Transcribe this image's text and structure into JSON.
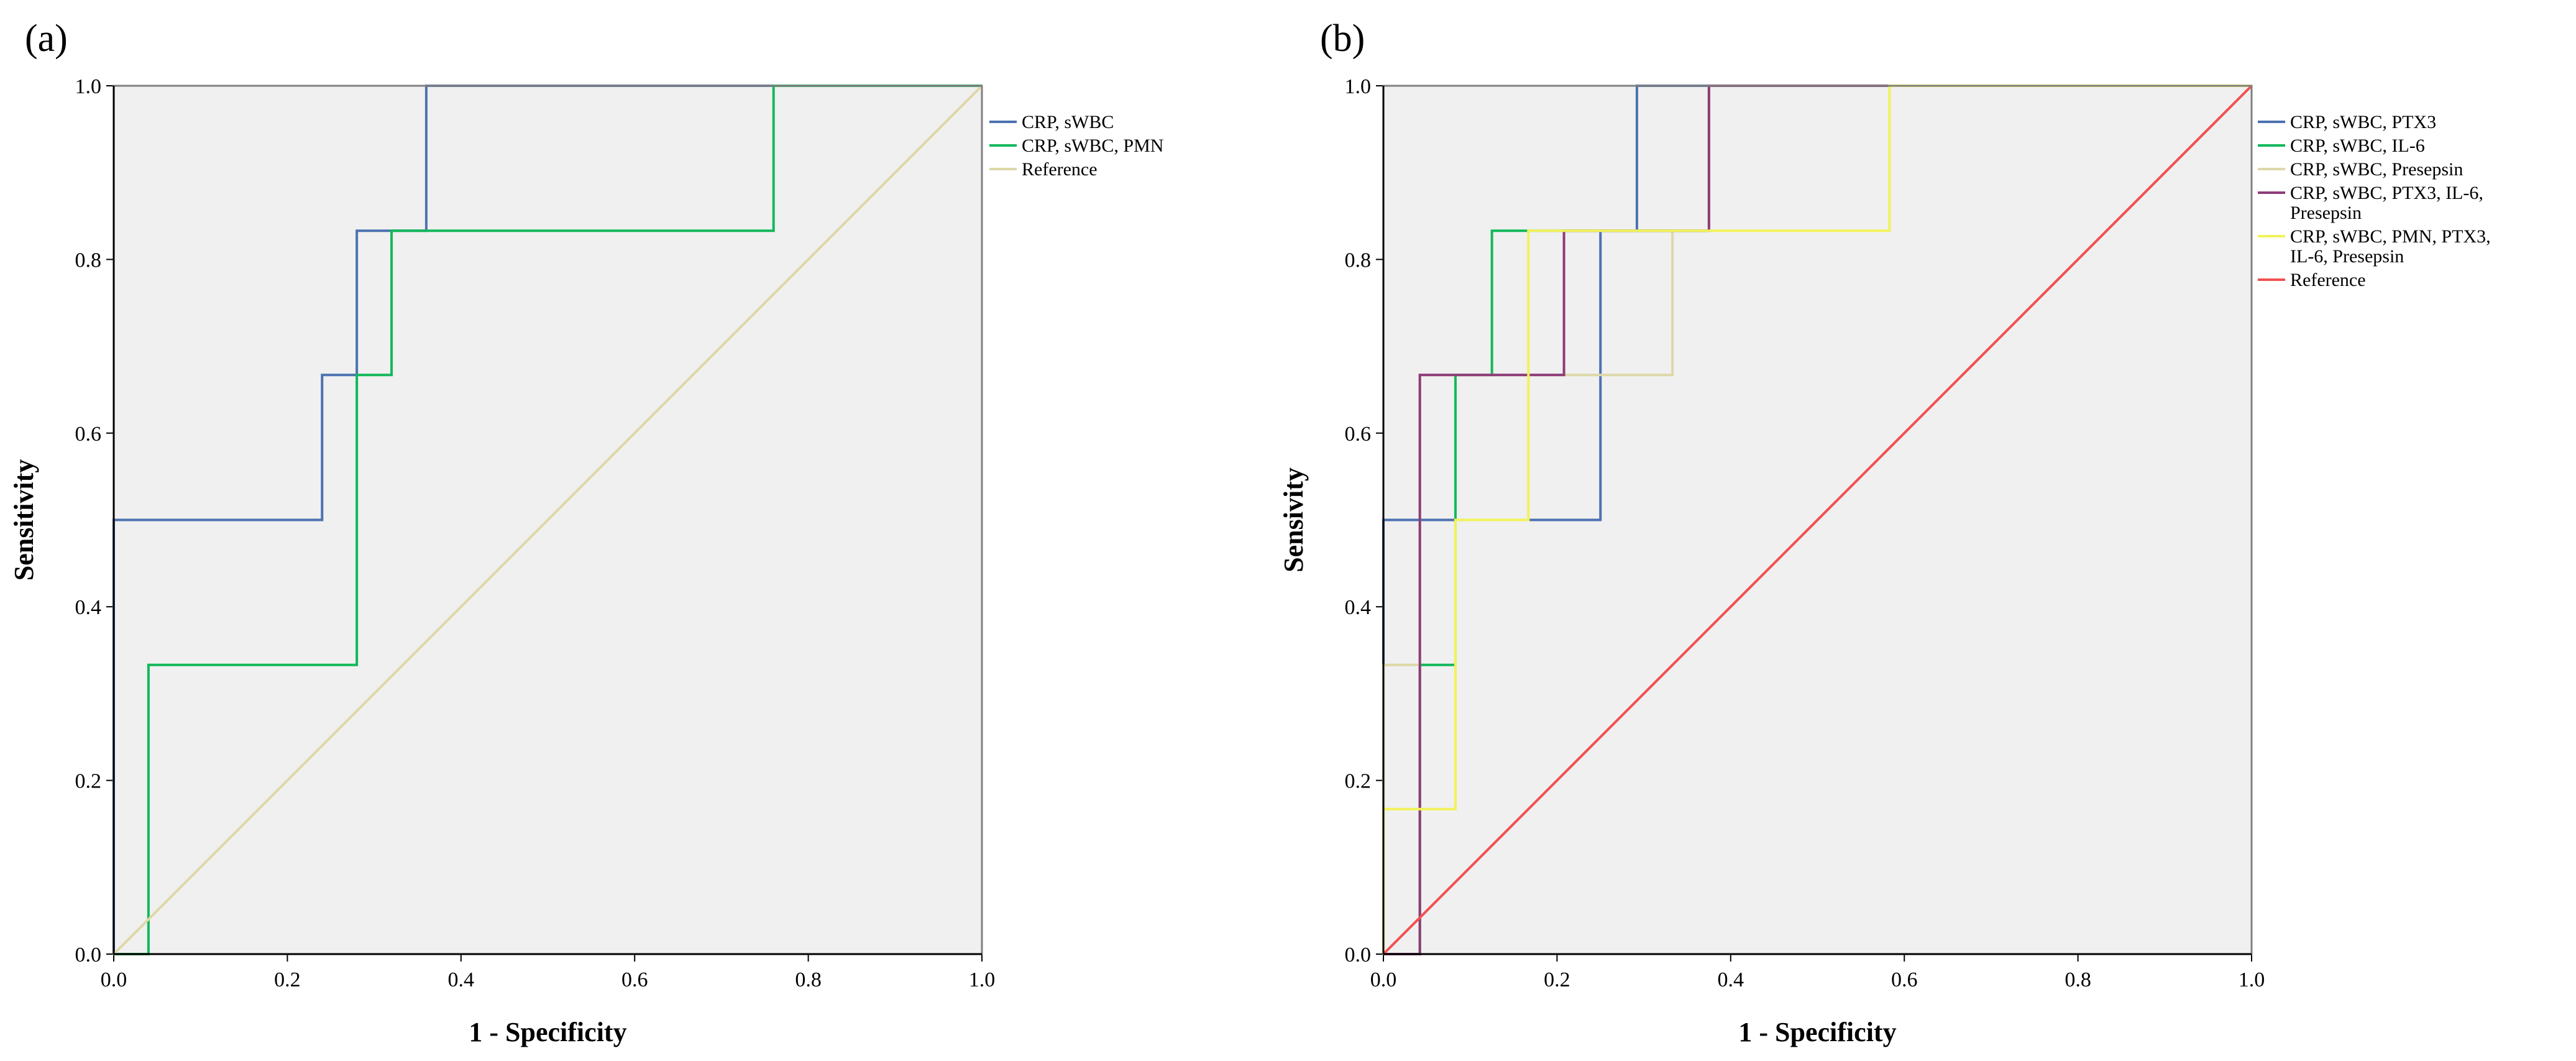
{
  "chart_data": [
    {
      "type": "line",
      "panel_label": "(a)",
      "xlabel": "1 - Specificity",
      "ylabel": "Sensitivity",
      "xlim": [
        0,
        1
      ],
      "ylim": [
        0,
        1
      ],
      "xticks": [
        "0.0",
        "0.2",
        "0.4",
        "0.6",
        "0.8",
        "1.0"
      ],
      "yticks": [
        "0.0",
        "0.2",
        "0.4",
        "0.6",
        "0.8",
        "1.0"
      ],
      "grid": false,
      "legend_position": "right",
      "series": [
        {
          "name": "CRP, sWBC",
          "legend_lines": [
            "CRP, sWBC"
          ],
          "color": "#4C72B0",
          "x": [
            0,
            0,
            0.24,
            0.24,
            0.28,
            0.28,
            0.36,
            0.36,
            1
          ],
          "y": [
            0,
            0.5,
            0.5,
            0.667,
            0.667,
            0.833,
            0.833,
            1,
            1
          ]
        },
        {
          "name": "CRP, sWBC, PMN",
          "legend_lines": [
            "CRP, sWBC, PMN"
          ],
          "color": "#12B85A",
          "x": [
            0,
            0.04,
            0.04,
            0.28,
            0.28,
            0.32,
            0.32,
            0.76,
            0.76,
            1
          ],
          "y": [
            0,
            0,
            0.333,
            0.333,
            0.667,
            0.667,
            0.833,
            0.833,
            1,
            1
          ]
        },
        {
          "name": "Reference",
          "legend_lines": [
            "Reference"
          ],
          "color": "#DDD8A8",
          "x": [
            0,
            1
          ],
          "y": [
            0,
            1
          ]
        }
      ]
    },
    {
      "type": "line",
      "panel_label": "(b)",
      "xlabel": "1 - Specificity",
      "ylabel": "Sensivity",
      "xlim": [
        0,
        1
      ],
      "ylim": [
        0,
        1
      ],
      "xticks": [
        "0.0",
        "0.2",
        "0.4",
        "0.6",
        "0.8",
        "1.0"
      ],
      "yticks": [
        "0.0",
        "0.2",
        "0.4",
        "0.6",
        "0.8",
        "1.0"
      ],
      "grid": false,
      "legend_position": "right",
      "series": [
        {
          "name": "CRP, sWBC, PTX3",
          "legend_lines": [
            "CRP, sWBC, PTX3"
          ],
          "color": "#4C72B0",
          "x": [
            0,
            0,
            0.25,
            0.25,
            0.292,
            0.292,
            1
          ],
          "y": [
            0,
            0.5,
            0.5,
            0.833,
            0.833,
            1,
            1
          ]
        },
        {
          "name": "CRP, sWBC, IL-6",
          "legend_lines": [
            "CRP, sWBC, IL-6"
          ],
          "color": "#12B85A",
          "x": [
            0,
            0.042,
            0.042,
            0.083,
            0.083,
            0.125,
            0.125,
            0.375,
            0.375,
            1
          ],
          "y": [
            0,
            0,
            0.333,
            0.333,
            0.667,
            0.667,
            0.833,
            0.833,
            1,
            1
          ]
        },
        {
          "name": "CRP, sWBC, Presepsin",
          "legend_lines": [
            "CRP, sWBC, Presepsin"
          ],
          "color": "#DDD8A8",
          "x": [
            0,
            0,
            0.042,
            0.042,
            0.333,
            0.333,
            0.375,
            0.375,
            1
          ],
          "y": [
            0,
            0.333,
            0.333,
            0.667,
            0.667,
            0.833,
            0.833,
            1,
            1
          ]
        },
        {
          "name": "CRP, sWBC, PTX3, IL-6, Presepsin",
          "legend_lines": [
            "CRP, sWBC, PTX3, IL-6,",
            "Presepsin"
          ],
          "color": "#8E3B78",
          "x": [
            0,
            0.042,
            0.042,
            0.208,
            0.208,
            0.375,
            0.375,
            1
          ],
          "y": [
            0,
            0,
            0.667,
            0.667,
            0.833,
            0.833,
            1,
            1
          ]
        },
        {
          "name": "CRP, sWBC, PMN, PTX3, IL-6, Presepsin",
          "legend_lines": [
            "CRP, sWBC, PMN, PTX3,",
            "IL-6, Presepsin"
          ],
          "color": "#F2F25A",
          "x": [
            0,
            0,
            0.083,
            0.083,
            0.167,
            0.167,
            0.583,
            0.583,
            1
          ],
          "y": [
            0,
            0.167,
            0.167,
            0.5,
            0.5,
            0.833,
            0.833,
            1,
            1
          ]
        },
        {
          "name": "Reference",
          "legend_lines": [
            "Reference"
          ],
          "color": "#F25050",
          "x": [
            0,
            1
          ],
          "y": [
            0,
            1
          ]
        }
      ]
    }
  ]
}
